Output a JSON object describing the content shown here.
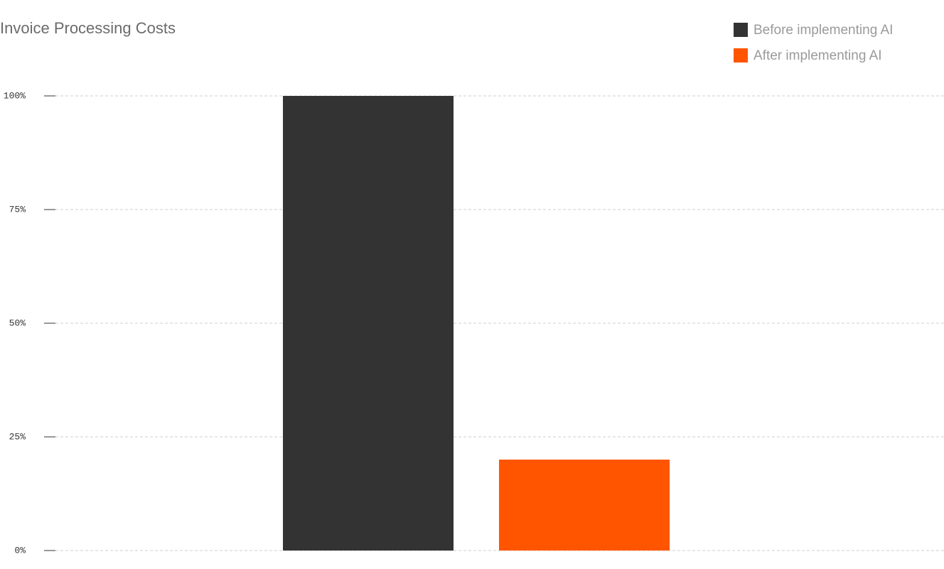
{
  "chart_data": {
    "type": "bar",
    "title": "Invoice Processing Costs",
    "categories": [
      null
    ],
    "series": [
      {
        "name": "Before implementing AI",
        "color": "#333333",
        "values": [
          100
        ]
      },
      {
        "name": "After implementing AI",
        "color": "#ff5500",
        "values": [
          20
        ]
      }
    ],
    "ylim": [
      0,
      100
    ],
    "yticks": [
      {
        "value": 0,
        "label": "0%"
      },
      {
        "value": 25,
        "label": "25%"
      },
      {
        "value": 50,
        "label": "50%"
      },
      {
        "value": 75,
        "label": "75%"
      },
      {
        "value": 100,
        "label": "100%"
      }
    ],
    "grid": true,
    "legend": "top-right"
  }
}
